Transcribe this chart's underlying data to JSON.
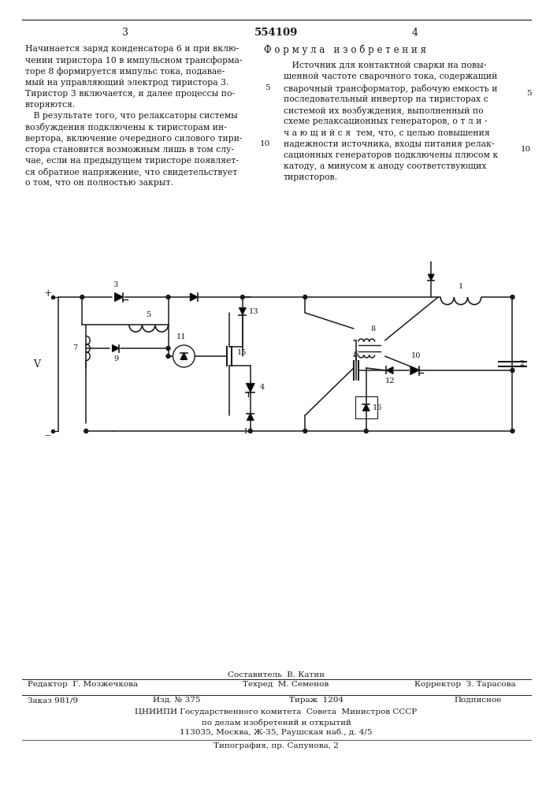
{
  "patent_number": "554109",
  "page_left": "3",
  "page_right": "4",
  "left_text": [
    "Начинается заряд конденсатора 6 и при вклю-",
    "чении тиристора 10 в импульсном трансформа-",
    "торе 8 формируется импульс тока, подавае-",
    "мый на управляющий электрод тиристора 3.",
    "Тиристор 3 включается, и далее процессы по-",
    "вторяются.",
    "   В результате того, что релаксаторы системы",
    "возбуждения подключены к тиристорам ин-",
    "вертора, включение очередного силового тири-",
    "стора становится возможным лишь в том слу-",
    "чае, если на предыдущем тиристоре появляет-",
    "ся обратное напряжение, что свидетельствует",
    "о том, что он полностью закрыт."
  ],
  "right_title": "Ф о р м у л а   и з о б р е т е н и я",
  "right_text": [
    "   Источник для контактной сварки на повы-",
    "шенной частоте сварочного тока, содержащий",
    "сварочный трансформатор, рабочую емкость и",
    "последовательный инвертор на тиристорах с",
    "системой их возбуждения, выполненный по",
    "схеме релаксационных генераторов, о т л и -",
    "ч а ю щ и й с я  тем, что, с целью повышения",
    "надежности источника, входы питания релак-",
    "сационных генераторов подключены плюсом к",
    "катоду, а минусом к аноду соответствующих",
    "тиристоров."
  ],
  "composer": "Составитель  В. Катин",
  "editor": "Редактор  Г. Мозжечкова",
  "tech": "Техред  М. Семенов",
  "corrector": "Корректор  З. Тарасова",
  "order": "Заказ 981/9",
  "publisher": "Изд. № 375",
  "circulation": "Тираж  1204",
  "signed": "Подписное",
  "org_name": "ЦНИИПИ Государственного комитета  Совета  Министров СССР",
  "org_dept": "по делам изобретений и открытий",
  "org_addr": "113035, Москва, Ж-35, Раушская наб., д. 4/5",
  "print_shop": "Типография, пр. Сапунова, 2",
  "bg_color": "#ffffff",
  "text_color": "#1a1a1a"
}
